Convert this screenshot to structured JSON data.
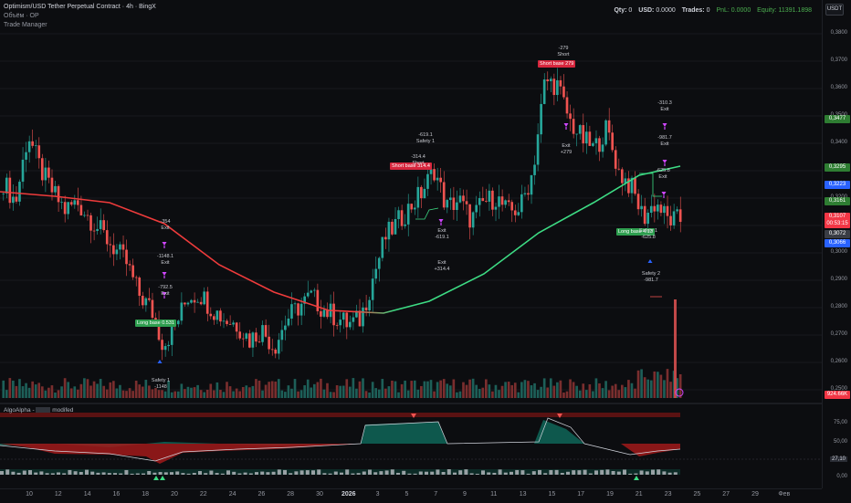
{
  "header": {
    "symbol_line": "Optimism/USD Tether Perpetual Contract · 4h · BingX",
    "volume_label": "Объём · OP",
    "indicator_label": "Trade Manager"
  },
  "stats": {
    "qty_label": "Qty:",
    "qty": "0",
    "usd_label": "USD:",
    "usd": "0.0000",
    "trades_label": "Trades:",
    "trades": "0",
    "pnl_label": "PnL:",
    "pnl": "0.0000",
    "equity_label": "Equity:",
    "equity": "11391.1898"
  },
  "currency": "USDT",
  "price_axis": {
    "ticks": [
      "0,3800",
      "0,3700",
      "0,3600",
      "0,3500",
      "0,3400",
      "0,3300",
      "0,3200",
      "0,3100",
      "0,3000",
      "0,2900",
      "0,2800",
      "0,2700",
      "0,2600",
      "0,2500"
    ],
    "badges": [
      {
        "text": "0,3477",
        "color": "#2e7d32"
      },
      {
        "text": "0,3295",
        "color": "#2e7d32"
      },
      {
        "text": "0,3223",
        "color": "#2962ff"
      },
      {
        "text": "0,3161",
        "color": "#2e7d32"
      },
      {
        "text": "0,3107",
        "color": "#f23645"
      },
      {
        "text": "00:53:15",
        "color": "#f23645"
      },
      {
        "text": "0,3072",
        "color": "#3a3d45"
      },
      {
        "text": "0,3066",
        "color": "#2962ff"
      },
      {
        "text": "924.66K",
        "color": "#f23645"
      }
    ],
    "osc_ticks": [
      "75,00",
      "50,00",
      "27,10",
      "0,00"
    ]
  },
  "time_axis": {
    "labels": [
      "10",
      "12",
      "14",
      "16",
      "18",
      "20",
      "22",
      "24",
      "26",
      "28",
      "30",
      "2026",
      "3",
      "5",
      "7",
      "9",
      "11",
      "13",
      "15",
      "17",
      "19",
      "21",
      "23",
      "25",
      "27",
      "29",
      "Фев"
    ],
    "bold_label": "2026"
  },
  "oscillator": {
    "name": "AlgoAlpha -",
    "suffix": "modifed"
  },
  "trade_tags": [
    {
      "text": "Long base 0.531",
      "color": "#2e9e4f"
    },
    {
      "text": "Short base 314.4",
      "color": "#d7263d"
    },
    {
      "text": "Short base 279",
      "color": "#d7263d"
    },
    {
      "text": "Long base 4.13",
      "color": "#2e9e4f"
    }
  ],
  "annotations": [
    "-354\nExit",
    "-1148.1\nExit",
    "-792.5\nExit",
    "Safety 1\n-1148",
    "-619.1\nSafety 1",
    "-314.4\nShort",
    "Exit\n-619.1",
    "Exit\n+314.4",
    "-279\nShort",
    "Exit\n+279",
    "-310.3\nExit",
    "-981.7\nExit",
    "-625.8\nExit",
    "Safety 1\n-625.8",
    "Safety 2\n-981.7"
  ],
  "chart_data": {
    "type": "candlestick",
    "ylim": [
      0.245,
      0.385
    ],
    "series": [
      {
        "name": "price",
        "values": [
          0.326,
          0.318,
          0.345,
          0.331,
          0.322,
          0.315,
          0.318,
          0.312,
          0.306,
          0.3,
          0.294,
          0.282,
          0.276,
          0.262,
          0.27,
          0.281,
          0.282,
          0.276,
          0.272,
          0.27,
          0.264,
          0.268,
          0.261,
          0.272,
          0.277,
          0.281,
          0.276,
          0.273,
          0.27,
          0.272,
          0.288,
          0.304,
          0.31,
          0.316,
          0.322,
          0.331,
          0.316,
          0.319,
          0.311,
          0.318,
          0.32,
          0.314,
          0.316,
          0.33,
          0.366,
          0.364,
          0.35,
          0.343,
          0.339,
          0.347,
          0.33,
          0.324,
          0.312,
          0.318,
          0.311,
          0.311
        ]
      }
    ]
  }
}
